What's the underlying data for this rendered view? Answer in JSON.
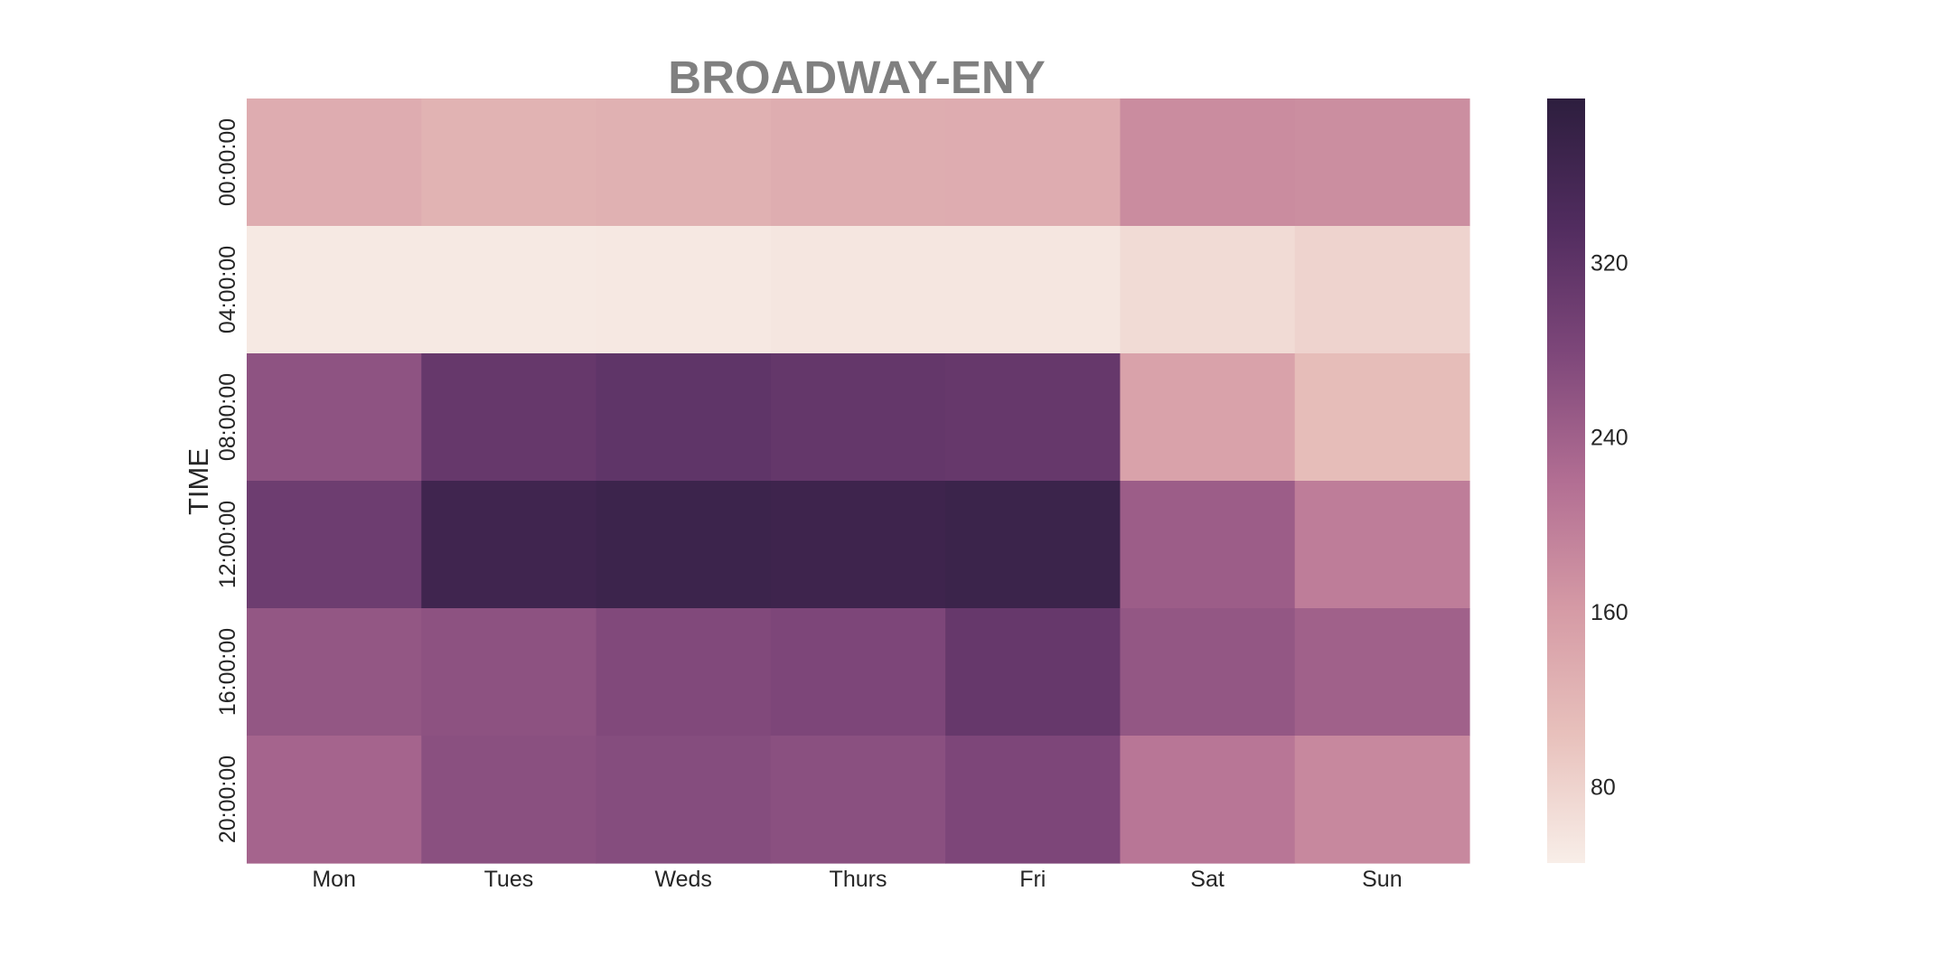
{
  "chart_data": {
    "type": "heatmap",
    "title": "BROADWAY-ENY",
    "xlabel": "",
    "ylabel": "TIME",
    "x_categories": [
      "Mon",
      "Tues",
      "Weds",
      "Thurs",
      "Fri",
      "Sat",
      "Sun"
    ],
    "y_categories": [
      "00:00:00",
      "04:00:00",
      "08:00:00",
      "12:00:00",
      "16:00:00",
      "20:00:00"
    ],
    "values": [
      [
        135,
        125,
        128,
        133,
        135,
        180,
        178
      ],
      [
        52,
        52,
        53,
        55,
        55,
        70,
        80
      ],
      [
        260,
        310,
        318,
        312,
        310,
        150,
        110
      ],
      [
        300,
        365,
        370,
        368,
        372,
        245,
        200
      ],
      [
        255,
        262,
        275,
        280,
        310,
        255,
        240
      ],
      [
        235,
        265,
        270,
        265,
        280,
        210,
        185
      ]
    ],
    "colorbar": {
      "min": 45,
      "max": 395,
      "ticks": [
        80,
        160,
        240,
        320
      ]
    },
    "colormap": [
      "#f8eee8",
      "#e8c1bc",
      "#d59aa5",
      "#b26e93",
      "#7e477a",
      "#512c5f",
      "#2d1e3e"
    ],
    "grid": false
  }
}
